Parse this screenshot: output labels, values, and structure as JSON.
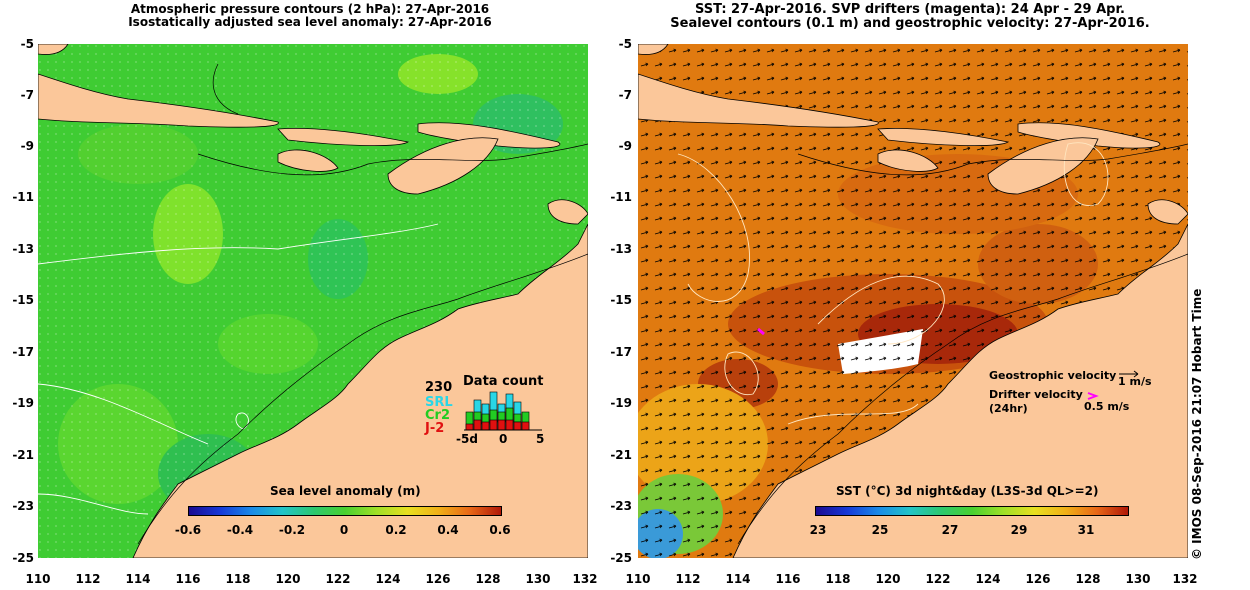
{
  "left_panel": {
    "title_line1": "Atmospheric pressure contours (2 hPa): 27-Apr-2016",
    "title_line2": "Isostatically adjusted sea level anomaly: 27-Apr-2016",
    "colorbar_title": "Sea level anomaly (m)",
    "colorbar_labels": [
      "-0.6",
      "-0.4",
      "-0.2",
      "0",
      "0.2",
      "0.4",
      "0.6"
    ],
    "data_count": {
      "total": "230",
      "title": "Data count",
      "satellites": [
        {
          "name": "SRL",
          "color": "#29d6e6"
        },
        {
          "name": "Cr2",
          "color": "#22cc22"
        },
        {
          "name": "J-2",
          "color": "#e01010"
        }
      ],
      "axis_labels": [
        "-5d",
        "0",
        "5"
      ]
    }
  },
  "right_panel": {
    "title_line1": "SST: 27-Apr-2016. SVP drifters (magenta): 24 Apr - 29 Apr.",
    "title_line2": "Sealevel contours (0.1 m) and geostrophic velocity: 27-Apr-2016.",
    "colorbar_title": "SST (°C) 3d night&day (L3S-3d QL>=2)",
    "colorbar_labels": [
      "23",
      "25",
      "27",
      "29",
      "31"
    ],
    "legend": {
      "geostrophic_label": "Geostrophic velocity",
      "geostrophic_scale": "1 m/s",
      "drifter_label": "Drifter velocity",
      "drifter_sub": "(24hr)",
      "drifter_scale": "0.5 m/s"
    }
  },
  "axes": {
    "y_ticks": [
      "-5",
      "-7",
      "-9",
      "-11",
      "-13",
      "-15",
      "-17",
      "-19",
      "-21",
      "-23",
      "-25"
    ],
    "x_ticks": [
      "110",
      "112",
      "114",
      "116",
      "118",
      "120",
      "122",
      "124",
      "126",
      "128",
      "130",
      "132"
    ]
  },
  "credit": "© IMOS 08-Sep-2016 21:07 Hobart Time",
  "colors": {
    "land": "#fbc79a",
    "sla_ocean": "#3fcc33",
    "sst_ocean": "#e07a10",
    "drifter": "#ff00ff"
  }
}
